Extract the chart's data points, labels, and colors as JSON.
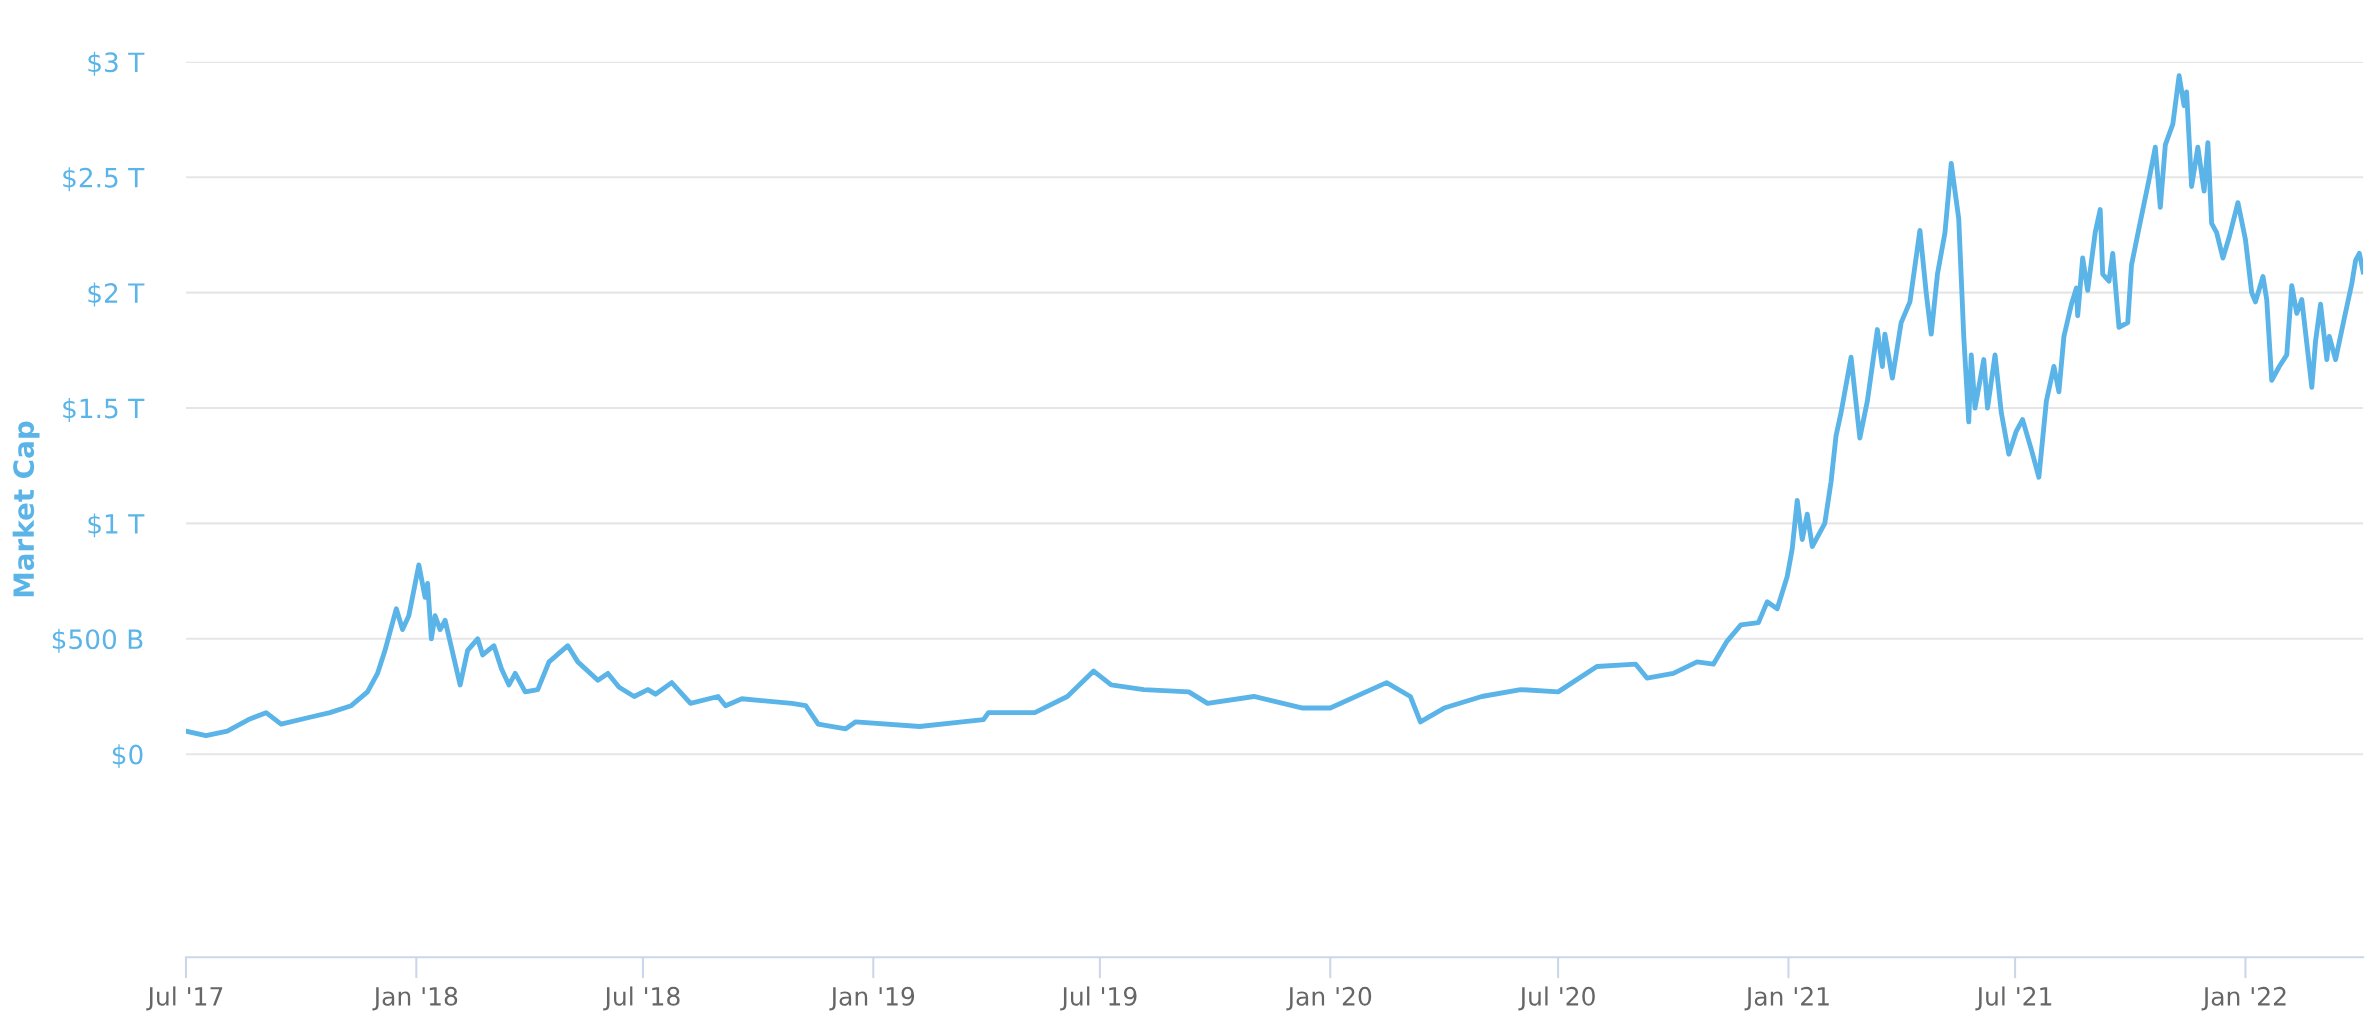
{
  "chart_data": {
    "type": "line",
    "ylabel": "Market Cap",
    "x": [
      "2017-07-01",
      "2017-07-17",
      "2017-08-03",
      "2017-08-20",
      "2017-09-03",
      "2017-09-15",
      "2017-10-08",
      "2017-10-24",
      "2017-11-10",
      "2017-11-23",
      "2017-12-01",
      "2017-12-07",
      "2017-12-16",
      "2017-12-21",
      "2017-12-26",
      "2018-01-03",
      "2018-01-08",
      "2018-01-10",
      "2018-01-13",
      "2018-01-16",
      "2018-01-20",
      "2018-01-24",
      "2018-02-05",
      "2018-02-11",
      "2018-02-19",
      "2018-02-23",
      "2018-03-04",
      "2018-03-10",
      "2018-03-16",
      "2018-03-21",
      "2018-03-29",
      "2018-04-08",
      "2018-04-17",
      "2018-05-02",
      "2018-05-10",
      "2018-05-26",
      "2018-06-03",
      "2018-06-12",
      "2018-06-24",
      "2018-07-05",
      "2018-07-11",
      "2018-07-24",
      "2018-08-08",
      "2018-08-30",
      "2018-09-05",
      "2018-09-18",
      "2018-10-28",
      "2018-11-08",
      "2018-11-18",
      "2018-12-10",
      "2018-12-18",
      "2019-02-07",
      "2019-03-13",
      "2019-03-30",
      "2019-04-03",
      "2019-04-11",
      "2019-05-10",
      "2019-06-05",
      "2019-06-26",
      "2019-07-10",
      "2019-08-05",
      "2019-09-10",
      "2019-09-25",
      "2019-11-01",
      "2019-12-10",
      "2020-01-01",
      "2020-02-15",
      "2020-03-05",
      "2020-03-13",
      "2020-04-01",
      "2020-05-01",
      "2020-06-01",
      "2020-07-01",
      "2020-08-01",
      "2020-09-01",
      "2020-09-10",
      "2020-10-01",
      "2020-10-20",
      "2020-11-02",
      "2020-11-13",
      "2020-11-24",
      "2020-12-08",
      "2020-12-15",
      "2020-12-23",
      "2020-12-31",
      "2021-01-04",
      "2021-01-08",
      "2021-01-12",
      "2021-01-16",
      "2021-01-20",
      "2021-01-30",
      "2021-02-04",
      "2021-02-08",
      "2021-02-12",
      "2021-02-20",
      "2021-02-27",
      "2021-03-05",
      "2021-03-13",
      "2021-03-17",
      "2021-03-19",
      "2021-03-25",
      "2021-04-01",
      "2021-04-08",
      "2021-04-16",
      "2021-04-21",
      "2021-04-25",
      "2021-04-30",
      "2021-05-06",
      "2021-05-11",
      "2021-05-17",
      "2021-05-21",
      "2021-05-25",
      "2021-05-27",
      "2021-05-30",
      "2021-06-06",
      "2021-06-09",
      "2021-06-15",
      "2021-06-20",
      "2021-06-26",
      "2021-07-02",
      "2021-07-07",
      "2021-07-14",
      "2021-07-20",
      "2021-07-26",
      "2021-08-01",
      "2021-08-05",
      "2021-08-09",
      "2021-08-15",
      "2021-08-19",
      "2021-08-20",
      "2021-08-24",
      "2021-08-28",
      "2021-09-03",
      "2021-09-07",
      "2021-09-09",
      "2021-09-14",
      "2021-09-17",
      "2021-09-22",
      "2021-09-29",
      "2021-10-02",
      "2021-10-08",
      "2021-10-16",
      "2021-10-21",
      "2021-10-25",
      "2021-10-29",
      "2021-11-04",
      "2021-11-09",
      "2021-11-13",
      "2021-11-15",
      "2021-11-19",
      "2021-11-24",
      "2021-11-29",
      "2021-12-02",
      "2021-12-05",
      "2021-12-09",
      "2021-12-14",
      "2021-12-19",
      "2021-12-26",
      "2022-01-01",
      "2022-01-06",
      "2022-01-09",
      "2022-01-15",
      "2022-01-18",
      "2022-01-22",
      "2022-01-28",
      "2022-02-03",
      "2022-02-07",
      "2022-02-11",
      "2022-02-15",
      "2022-02-23",
      "2022-02-26",
      "2022-03-02",
      "2022-03-07",
      "2022-03-09",
      "2022-03-14",
      "2022-03-21",
      "2022-03-27",
      "2022-03-30",
      "2022-04-02",
      "2022-04-05"
    ],
    "series": [
      {
        "color": "#5ab4e8",
        "values": [
          100000000000.0,
          80000000000.0,
          100000000000.0,
          150000000000.0,
          180000000000.0,
          130000000000.0,
          160000000000.0,
          180000000000.0,
          210000000000.0,
          270000000000.0,
          350000000000.0,
          450000000000.0,
          630000000000.0,
          540000000000.0,
          600000000000.0,
          820000000000.0,
          680000000000.0,
          740000000000.0,
          500000000000.0,
          600000000000.0,
          540000000000.0,
          580000000000.0,
          300000000000.0,
          450000000000.0,
          500000000000.0,
          430000000000.0,
          470000000000.0,
          370000000000.0,
          300000000000.0,
          350000000000.0,
          270000000000.0,
          280000000000.0,
          400000000000.0,
          470000000000.0,
          400000000000.0,
          320000000000.0,
          350000000000.0,
          290000000000.0,
          250000000000.0,
          280000000000.0,
          260000000000.0,
          310000000000.0,
          220000000000.0,
          250000000000.0,
          210000000000.0,
          240000000000.0,
          220000000000.0,
          210000000000.0,
          130000000000.0,
          110000000000.0,
          140000000000.0,
          120000000000.0,
          140000000000.0,
          150000000000.0,
          180000000000.0,
          180000000000.0,
          180000000000.0,
          250000000000.0,
          360000000000.0,
          300000000000.0,
          280000000000.0,
          270000000000.0,
          220000000000.0,
          250000000000.0,
          200000000000.0,
          200000000000.0,
          310000000000.0,
          250000000000.0,
          140000000000.0,
          200000000000.0,
          250000000000.0,
          280000000000.0,
          270000000000.0,
          380000000000.0,
          390000000000.0,
          330000000000.0,
          350000000000.0,
          400000000000.0,
          390000000000.0,
          490000000000.0,
          560000000000.0,
          570000000000.0,
          660000000000.0,
          630000000000.0,
          770000000000.0,
          890000000000.0,
          1100000000000.0,
          930000000000.0,
          1040000000000.0,
          900000000000.0,
          1000000000000.0,
          1180000000000.0,
          1380000000000.0,
          1480000000000.0,
          1720000000000.0,
          1370000000000.0,
          1530000000000.0,
          1840000000000.0,
          1680000000000.0,
          1820000000000.0,
          1630000000000.0,
          1870000000000.0,
          1960000000000.0,
          2270000000000.0,
          2000000000000.0,
          1820000000000.0,
          2080000000000.0,
          2260000000000.0,
          2560000000000.0,
          2320000000000.0,
          1810000000000.0,
          1440000000000.0,
          1730000000000.0,
          1500000000000.0,
          1710000000000.0,
          1500000000000.0,
          1730000000000.0,
          1480000000000.0,
          1300000000000.0,
          1400000000000.0,
          1450000000000.0,
          1320000000000.0,
          1200000000000.0,
          1530000000000.0,
          1680000000000.0,
          1570000000000.0,
          1810000000000.0,
          1950000000000.0,
          2020000000000.0,
          1900000000000.0,
          2150000000000.0,
          2010000000000.0,
          2260000000000.0,
          2360000000000.0,
          2080000000000.0,
          2050000000000.0,
          2170000000000.0,
          1850000000000.0,
          1870000000000.0,
          2120000000000.0,
          2280000000000.0,
          2490000000000.0,
          2630000000000.0,
          2370000000000.0,
          2640000000000.0,
          2730000000000.0,
          2940000000000.0,
          2810000000000.0,
          2870000000000.0,
          2460000000000.0,
          2630000000000.0,
          2440000000000.0,
          2650000000000.0,
          2300000000000.0,
          2260000000000.0,
          2150000000000.0,
          2240000000000.0,
          2390000000000.0,
          2230000000000.0,
          2000000000000.0,
          1960000000000.0,
          2070000000000.0,
          1970000000000.0,
          1620000000000.0,
          1680000000000.0,
          1730000000000.0,
          2030000000000.0,
          1910000000000.0,
          1970000000000.0,
          1590000000000.0,
          1790000000000.0,
          1950000000000.0,
          1710000000000.0,
          1810000000000.0,
          1710000000000.0,
          1890000000000.0,
          2040000000000.0,
          2140000000000.0,
          2170000000000.0,
          2090000000000.0
        ]
      }
    ],
    "xlim": [
      "2017-07-01",
      "2022-04-05"
    ],
    "xticks": [
      {
        "value": "2017-07-01",
        "label": "Jul '17"
      },
      {
        "value": "2018-01-01",
        "label": "Jan '18"
      },
      {
        "value": "2018-07-01",
        "label": "Jul '18"
      },
      {
        "value": "2019-01-01",
        "label": "Jan '19"
      },
      {
        "value": "2019-07-01",
        "label": "Jul '19"
      },
      {
        "value": "2020-01-01",
        "label": "Jan '20"
      },
      {
        "value": "2020-07-01",
        "label": "Jul '20"
      },
      {
        "value": "2021-01-01",
        "label": "Jan '21"
      },
      {
        "value": "2021-07-01",
        "label": "Jul '21"
      },
      {
        "value": "2022-01-01",
        "label": "Jan '22"
      }
    ],
    "ylim": [
      -880000000000.0,
      3000000000000.0
    ],
    "yticks": [
      {
        "value": 0,
        "label": "$0"
      },
      {
        "value": 500000000000.0,
        "label": "$500 B"
      },
      {
        "value": 1000000000000.0,
        "label": "$1 T"
      },
      {
        "value": 1500000000000.0,
        "label": "$1.5 T"
      },
      {
        "value": 2000000000000.0,
        "label": "$2 T"
      },
      {
        "value": 2500000000000.0,
        "label": "$2.5 T"
      },
      {
        "value": 3000000000000.0,
        "label": "$3 T"
      }
    ],
    "grid": "y",
    "marker": "none",
    "line_style": "solid"
  }
}
